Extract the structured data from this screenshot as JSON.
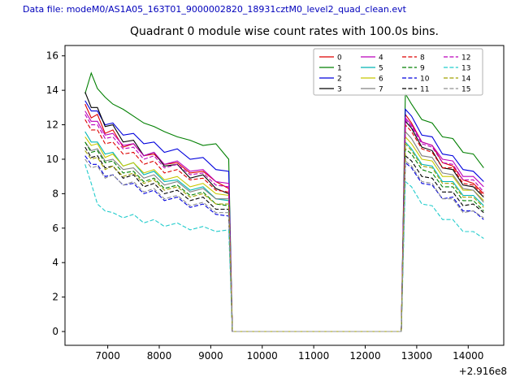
{
  "header": {
    "data_file": "Data file: modeM0/AS1A05_163T01_9000002820_18931cztM0_level2_quad_clean.evt",
    "text_color": "#0000bb"
  },
  "chart_data": {
    "type": "line",
    "title": "Quadrant 0 module wise count rates with 100.0s bins.",
    "xlabel": "",
    "ylabel": "",
    "x_offset_label": "+2.916e8",
    "bin_size_seconds": 100.0,
    "xlim": [
      6170,
      14690
    ],
    "ylim": [
      -0.8,
      16.6
    ],
    "xticks": [
      7000,
      8000,
      9000,
      10000,
      11000,
      12000,
      13000,
      14000
    ],
    "yticks": [
      0,
      2,
      4,
      6,
      8,
      10,
      12,
      14,
      16
    ],
    "grid": false,
    "legend_position": "upper right, 4 columns",
    "x": [
      6560,
      6680,
      6800,
      6950,
      7100,
      7300,
      7500,
      7700,
      7900,
      8100,
      8350,
      8600,
      8850,
      9100,
      9350,
      9420,
      12700,
      12780,
      12900,
      13100,
      13300,
      13500,
      13700,
      13900,
      14100,
      14300
    ],
    "series": [
      {
        "name": "0",
        "color": "#dd0000",
        "style": "solid",
        "values": [
          13.2,
          12.4,
          12.6,
          11.5,
          11.7,
          10.7,
          10.9,
          10.2,
          10.3,
          9.7,
          9.8,
          9.2,
          9.3,
          8.7,
          8.3,
          0,
          0,
          12.6,
          12.1,
          11.0,
          10.8,
          9.8,
          9.6,
          8.8,
          8.6,
          8.0
        ]
      },
      {
        "name": "1",
        "color": "#007f00",
        "style": "solid",
        "values": [
          13.8,
          15.0,
          14.1,
          13.6,
          13.2,
          12.9,
          12.5,
          12.1,
          11.9,
          11.6,
          11.3,
          11.1,
          10.8,
          10.9,
          10.0,
          0,
          0,
          13.8,
          13.2,
          12.3,
          12.1,
          11.3,
          11.2,
          10.4,
          10.3,
          9.5
        ]
      },
      {
        "name": "2",
        "color": "#0000dd",
        "style": "solid",
        "values": [
          13.4,
          12.8,
          12.8,
          12.0,
          12.1,
          11.4,
          11.5,
          10.9,
          11.0,
          10.4,
          10.6,
          10.0,
          10.1,
          9.4,
          9.3,
          0,
          0,
          12.9,
          12.5,
          11.4,
          11.3,
          10.3,
          10.2,
          9.4,
          9.3,
          8.7
        ]
      },
      {
        "name": "3",
        "color": "#000000",
        "style": "solid",
        "values": [
          13.9,
          13.0,
          13.0,
          11.9,
          12.0,
          11.0,
          11.1,
          10.2,
          10.4,
          9.6,
          9.7,
          8.9,
          9.1,
          8.3,
          8.0,
          0,
          0,
          12.2,
          11.8,
          10.7,
          10.5,
          9.5,
          9.4,
          8.5,
          8.4,
          7.8
        ]
      },
      {
        "name": "4",
        "color": "#bb00bb",
        "style": "solid",
        "values": [
          12.8,
          12.2,
          12.2,
          11.4,
          11.5,
          10.8,
          10.9,
          10.2,
          10.4,
          9.7,
          9.9,
          9.3,
          9.4,
          8.7,
          8.6,
          0,
          0,
          12.4,
          12.0,
          11.0,
          10.8,
          10.0,
          9.9,
          9.0,
          9.0,
          8.4
        ]
      },
      {
        "name": "5",
        "color": "#00b5b5",
        "style": "solid",
        "values": [
          11.6,
          11.0,
          11.0,
          10.3,
          10.4,
          9.6,
          9.8,
          9.1,
          9.3,
          8.7,
          8.8,
          8.2,
          8.4,
          7.7,
          7.6,
          0,
          0,
          11.0,
          10.6,
          9.7,
          9.6,
          8.7,
          8.7,
          7.9,
          7.9,
          7.3
        ]
      },
      {
        "name": "6",
        "color": "#c8c800",
        "style": "solid",
        "values": [
          11.3,
          10.8,
          10.9,
          10.1,
          10.3,
          9.6,
          9.8,
          9.2,
          9.4,
          8.8,
          9.0,
          8.4,
          8.6,
          8.0,
          7.9,
          0,
          0,
          11.3,
          10.9,
          10.0,
          9.9,
          9.0,
          9.0,
          8.2,
          8.2,
          7.6
        ]
      },
      {
        "name": "7",
        "color": "#808080",
        "style": "solid",
        "values": [
          11.0,
          10.5,
          10.6,
          9.9,
          10.0,
          9.4,
          9.5,
          8.9,
          9.1,
          8.5,
          8.7,
          8.1,
          8.3,
          7.7,
          7.7,
          0,
          0,
          11.6,
          11.2,
          10.2,
          10.1,
          9.2,
          9.1,
          8.3,
          8.2,
          7.5
        ]
      },
      {
        "name": "8",
        "color": "#dd0000",
        "style": "dashed",
        "values": [
          12.3,
          11.7,
          11.7,
          10.9,
          11.0,
          10.3,
          10.4,
          9.7,
          9.9,
          9.2,
          9.4,
          8.8,
          8.9,
          8.2,
          8.1,
          0,
          0,
          12.0,
          11.6,
          10.6,
          10.4,
          9.5,
          9.5,
          8.6,
          8.5,
          7.9
        ]
      },
      {
        "name": "9",
        "color": "#007f00",
        "style": "dashed",
        "values": [
          11.0,
          10.4,
          10.5,
          9.8,
          9.9,
          9.2,
          9.3,
          8.7,
          8.9,
          8.3,
          8.5,
          7.9,
          8.1,
          7.4,
          7.3,
          0,
          0,
          10.6,
          10.3,
          9.4,
          9.2,
          8.4,
          8.4,
          7.6,
          7.6,
          7.0
        ]
      },
      {
        "name": "10",
        "color": "#0000dd",
        "style": "dashed",
        "values": [
          10.2,
          9.7,
          9.7,
          9.0,
          9.1,
          8.5,
          8.6,
          8.0,
          8.2,
          7.6,
          7.8,
          7.2,
          7.4,
          6.8,
          6.7,
          0,
          0,
          9.8,
          9.5,
          8.6,
          8.5,
          7.7,
          7.8,
          7.0,
          7.0,
          6.5
        ]
      },
      {
        "name": "11",
        "color": "#000000",
        "style": "dashed",
        "values": [
          10.7,
          10.1,
          10.2,
          9.5,
          9.6,
          8.9,
          9.1,
          8.4,
          8.6,
          8.0,
          8.2,
          7.6,
          7.8,
          7.1,
          7.1,
          0,
          0,
          10.2,
          9.9,
          9.0,
          8.9,
          8.1,
          8.1,
          7.3,
          7.4,
          6.9
        ]
      },
      {
        "name": "12",
        "color": "#bb00bb",
        "style": "dashed",
        "values": [
          12.6,
          12.0,
          12.0,
          11.2,
          11.3,
          10.6,
          10.7,
          10.0,
          10.2,
          9.5,
          9.7,
          9.1,
          9.2,
          8.5,
          8.4,
          0,
          0,
          12.3,
          11.9,
          10.9,
          10.7,
          9.8,
          9.7,
          8.8,
          8.8,
          8.1
        ]
      },
      {
        "name": "13",
        "color": "#22cccc",
        "style": "dashed",
        "values": [
          9.7,
          8.6,
          7.4,
          7.0,
          6.9,
          6.6,
          6.8,
          6.3,
          6.5,
          6.1,
          6.3,
          5.9,
          6.1,
          5.8,
          5.9,
          0,
          0,
          8.7,
          8.4,
          7.4,
          7.3,
          6.5,
          6.5,
          5.8,
          5.8,
          5.4
        ]
      },
      {
        "name": "14",
        "color": "#a0a000",
        "style": "dashed",
        "values": [
          10.5,
          10.0,
          10.1,
          9.4,
          9.6,
          9.0,
          9.2,
          8.6,
          8.8,
          8.2,
          8.4,
          7.8,
          8.0,
          7.4,
          7.4,
          0,
          0,
          10.9,
          10.5,
          9.6,
          9.5,
          8.6,
          8.6,
          7.8,
          7.8,
          7.2
        ]
      },
      {
        "name": "15",
        "color": "#909090",
        "style": "dashed",
        "values": [
          10.0,
          9.5,
          9.6,
          8.9,
          9.1,
          8.5,
          8.7,
          8.1,
          8.3,
          7.7,
          7.9,
          7.3,
          7.5,
          6.9,
          6.9,
          0,
          0,
          9.9,
          9.6,
          8.7,
          8.6,
          7.7,
          7.7,
          6.9,
          7.0,
          6.6
        ]
      }
    ]
  }
}
